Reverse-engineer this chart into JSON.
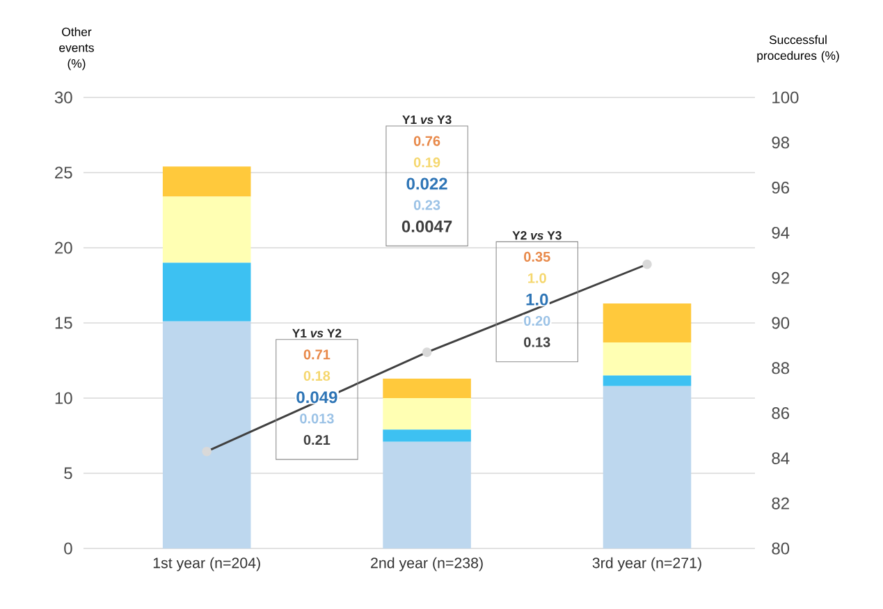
{
  "chart_data": {
    "type": "bar",
    "stacked": true,
    "ylabel": "Other events (%)",
    "y2label": "Successful procedures (%)",
    "categories": [
      "1st year (n=204)",
      "2nd year (n=238)",
      "3rd year (n=271)"
    ],
    "series": [
      {
        "color": "#bdd7ee",
        "values": [
          15.1,
          7.1,
          10.8
        ]
      },
      {
        "color": "#3dc1f2",
        "values": [
          3.9,
          0.8,
          0.7
        ]
      },
      {
        "color": "#ffffb3",
        "values": [
          4.4,
          2.1,
          2.2
        ]
      },
      {
        "color": "#ffc93c",
        "values": [
          2.0,
          1.3,
          2.6
        ]
      },
      {
        "type": "line",
        "axis": "y2",
        "color": "#404040",
        "marker": "circle",
        "values": [
          84.3,
          88.7,
          92.6
        ]
      }
    ],
    "ylim": [
      0,
      30
    ],
    "yticks": [
      0,
      5,
      10,
      15,
      20,
      25,
      30
    ],
    "y2lim": [
      80,
      100
    ],
    "y2ticks": [
      80,
      82,
      84,
      86,
      88,
      90,
      92,
      94,
      96,
      98,
      100
    ],
    "grid": "y",
    "annotations": [
      "Y1 *vs* Y2",
      "0.71",
      "0.18",
      "0.049",
      "0.013",
      "0.21",
      "Y1 *vs* Y3",
      "0.76",
      "0.19",
      "0.022",
      "0.23",
      "0.0047",
      "Y2 *vs* Y3",
      "0.35",
      "1.0",
      "1.0",
      "0.20",
      "0.13"
    ]
  }
}
